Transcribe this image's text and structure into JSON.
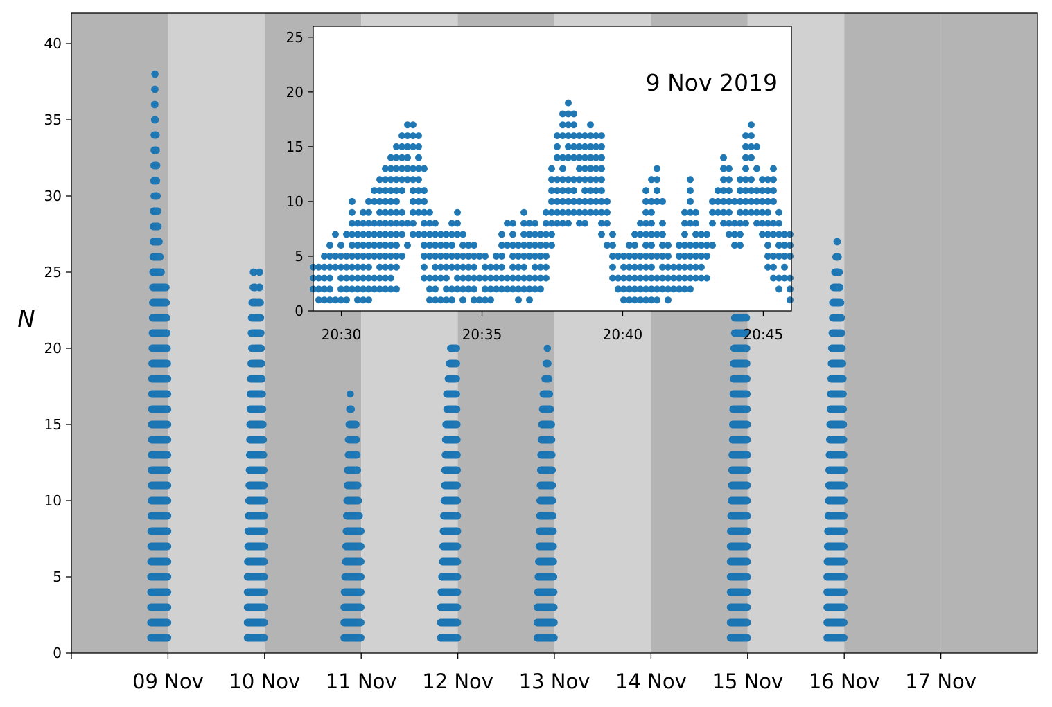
{
  "colors": {
    "point": "#1f77b4",
    "band_dark": "#b4b4b4",
    "band_light": "#d1d1d1",
    "inset_bg": "#ffffff",
    "axis": "#000000"
  },
  "chart_data": [
    {
      "id": "main",
      "type": "scatter",
      "title": "",
      "xlabel": "",
      "ylabel": "N",
      "x_scale": "date",
      "xlim": [
        "2019-11-08T00:00",
        "2019-11-18T00:00"
      ],
      "ylim": [
        0,
        42
      ],
      "x_ticks": [
        "2019-11-09",
        "2019-11-10",
        "2019-11-11",
        "2019-11-12",
        "2019-11-13",
        "2019-11-14",
        "2019-11-15",
        "2019-11-16",
        "2019-11-17"
      ],
      "x_tick_labels": [
        "09 Nov",
        "10 Nov",
        "11 Nov",
        "12 Nov",
        "13 Nov",
        "14 Nov",
        "15 Nov",
        "16 Nov",
        "17 Nov"
      ],
      "y_ticks": [
        0,
        5,
        10,
        15,
        20,
        25,
        30,
        35,
        40
      ],
      "grid": false,
      "legend": "none",
      "background_bands": [
        {
          "start": "2019-11-08",
          "end": "2019-11-09",
          "shade": "dark"
        },
        {
          "start": "2019-11-09",
          "end": "2019-11-10",
          "shade": "light"
        },
        {
          "start": "2019-11-10",
          "end": "2019-11-11",
          "shade": "dark"
        },
        {
          "start": "2019-11-11",
          "end": "2019-11-12",
          "shade": "light"
        },
        {
          "start": "2019-11-12",
          "end": "2019-11-13",
          "shade": "dark"
        },
        {
          "start": "2019-11-13",
          "end": "2019-11-14",
          "shade": "light"
        },
        {
          "start": "2019-11-14",
          "end": "2019-11-15",
          "shade": "dark"
        },
        {
          "start": "2019-11-15",
          "end": "2019-11-16",
          "shade": "light"
        },
        {
          "start": "2019-11-16",
          "end": "2019-11-17",
          "shade": "dark"
        },
        {
          "start": "2019-11-17",
          "end": "2019-11-18",
          "shade": "dark"
        }
      ],
      "clusters": [
        {
          "date": "2019-11-09",
          "time_range": [
            "19:45",
            "23:55"
          ],
          "max_N": 39,
          "max_by_time": [
            [
              "19:45",
              5
            ],
            [
              "20:00",
              18
            ],
            [
              "20:15",
              24
            ],
            [
              "20:30",
              31
            ],
            [
              "20:45",
              39
            ],
            [
              "21:00",
              35
            ],
            [
              "21:15",
              31
            ],
            [
              "21:30",
              28
            ],
            [
              "22:00",
              26
            ],
            [
              "22:30",
              24
            ],
            [
              "23:00",
              24
            ],
            [
              "23:30",
              24
            ],
            [
              "23:55",
              18
            ]
          ]
        },
        {
          "date": "2019-11-10",
          "time_range": [
            "19:45",
            "23:55"
          ],
          "max_N": 25,
          "max_by_time": [
            [
              "19:45",
              5
            ],
            [
              "20:15",
              12
            ],
            [
              "20:45",
              22
            ],
            [
              "21:15",
              25
            ],
            [
              "21:45",
              24
            ],
            [
              "22:15",
              22
            ],
            [
              "22:45",
              25
            ],
            [
              "23:15",
              19
            ],
            [
              "23:40",
              14
            ],
            [
              "23:55",
              10
            ]
          ]
        },
        {
          "date": "2019-11-11",
          "time_range": [
            "19:45",
            "23:55"
          ],
          "max_N": 17,
          "max_by_time": [
            [
              "19:45",
              3
            ],
            [
              "20:15",
              7
            ],
            [
              "20:45",
              13
            ],
            [
              "21:15",
              17
            ],
            [
              "21:45",
              15
            ],
            [
              "22:15",
              15
            ],
            [
              "22:45",
              15
            ],
            [
              "23:15",
              10
            ],
            [
              "23:40",
              8
            ],
            [
              "23:55",
              8
            ]
          ]
        },
        {
          "date": "2019-11-12",
          "time_range": [
            "19:45",
            "23:55"
          ],
          "max_N": 20,
          "max_by_time": [
            [
              "19:45",
              3
            ],
            [
              "20:15",
              6
            ],
            [
              "20:45",
              11
            ],
            [
              "21:15",
              17
            ],
            [
              "21:45",
              18
            ],
            [
              "22:15",
              20
            ],
            [
              "22:45",
              20
            ],
            [
              "23:15",
              20
            ],
            [
              "23:40",
              20
            ],
            [
              "23:55",
              8
            ]
          ]
        },
        {
          "date": "2019-11-13",
          "time_range": [
            "19:45",
            "23:55"
          ],
          "max_N": 20,
          "max_by_time": [
            [
              "19:45",
              3
            ],
            [
              "20:15",
              7
            ],
            [
              "20:45",
              14
            ],
            [
              "21:15",
              17
            ],
            [
              "21:45",
              18
            ],
            [
              "22:15",
              20
            ],
            [
              "22:45",
              17
            ],
            [
              "23:15",
              15
            ],
            [
              "23:40",
              8
            ],
            [
              "23:55",
              2
            ]
          ]
        },
        {
          "date": "2019-11-15",
          "time_range": [
            "19:45",
            "23:55"
          ],
          "max_N": 27,
          "max_by_time": [
            [
              "19:45",
              7
            ],
            [
              "20:15",
              14
            ],
            [
              "20:45",
              22
            ],
            [
              "21:15",
              25
            ],
            [
              "21:45",
              25
            ],
            [
              "22:15",
              26
            ],
            [
              "22:45",
              27
            ],
            [
              "23:15",
              25
            ],
            [
              "23:40",
              23
            ],
            [
              "23:55",
              14
            ]
          ]
        },
        {
          "date": "2019-11-16",
          "time_range": [
            "19:45",
            "23:55"
          ],
          "max_N": 27,
          "max_by_time": [
            [
              "19:45",
              5
            ],
            [
              "20:15",
              12
            ],
            [
              "20:45",
              18
            ],
            [
              "21:15",
              24
            ],
            [
              "21:45",
              25
            ],
            [
              "22:15",
              27
            ],
            [
              "22:45",
              25
            ],
            [
              "23:15",
              22
            ],
            [
              "23:40",
              18
            ],
            [
              "23:55",
              12
            ]
          ]
        }
      ]
    },
    {
      "id": "inset",
      "type": "scatter",
      "title": "",
      "annotation": "9 Nov 2019",
      "xlabel": "",
      "ylabel": "",
      "x_scale": "time",
      "xlim": [
        "20:29",
        "20:46"
      ],
      "ylim": [
        0,
        26
      ],
      "x_ticks": [
        "20:30",
        "20:35",
        "20:40",
        "20:45"
      ],
      "x_tick_labels": [
        "20:30",
        "20:35",
        "20:40",
        "20:45"
      ],
      "y_ticks": [
        0,
        5,
        10,
        15,
        20,
        25
      ],
      "grid": false,
      "legend": "none",
      "max_profile": [
        [
          "20:29.0",
          4
        ],
        [
          "20:29.4",
          5
        ],
        [
          "20:29.8",
          7
        ],
        [
          "20:30.1",
          5
        ],
        [
          "20:30.3",
          12
        ],
        [
          "20:30.6",
          8
        ],
        [
          "20:31.0",
          10
        ],
        [
          "20:31.2",
          12
        ],
        [
          "20:31.6",
          13
        ],
        [
          "20:32.0",
          15
        ],
        [
          "20:32.2",
          17
        ],
        [
          "20:32.5",
          18
        ],
        [
          "20:32.8",
          16
        ],
        [
          "20:33.1",
          11
        ],
        [
          "20:33.4",
          7
        ],
        [
          "20:33.8",
          8
        ],
        [
          "20:34.1",
          9
        ],
        [
          "20:34.5",
          6
        ],
        [
          "20:35.0",
          6
        ],
        [
          "20:35.5",
          5
        ],
        [
          "20:35.9",
          8
        ],
        [
          "20:36.3",
          7
        ],
        [
          "20:36.6",
          10
        ],
        [
          "20:36.9",
          8
        ],
        [
          "20:37.3",
          9
        ],
        [
          "20:37.6",
          15
        ],
        [
          "20:37.8",
          17
        ],
        [
          "20:38.1",
          20
        ],
        [
          "20:38.4",
          17
        ],
        [
          "20:38.7",
          16
        ],
        [
          "20:39.0",
          18
        ],
        [
          "20:39.3",
          15
        ],
        [
          "20:39.6",
          7
        ],
        [
          "20:39.9",
          6
        ],
        [
          "20:40.3",
          6
        ],
        [
          "20:40.6",
          9
        ],
        [
          "20:41.0",
          12
        ],
        [
          "20:41.2",
          14
        ],
        [
          "20:41.5",
          9
        ],
        [
          "20:41.8",
          5
        ],
        [
          "20:42.1",
          8
        ],
        [
          "20:42.4",
          12
        ],
        [
          "20:42.7",
          8
        ],
        [
          "20:43.0",
          7
        ],
        [
          "20:43.3",
          11
        ],
        [
          "20:43.6",
          15
        ],
        [
          "20:44.0",
          10
        ],
        [
          "20:44.3",
          15
        ],
        [
          "20:44.5",
          17
        ],
        [
          "20:44.8",
          15
        ],
        [
          "20:45.1",
          12
        ],
        [
          "20:45.4",
          14
        ],
        [
          "20:45.7",
          7
        ],
        [
          "20:46.0",
          7
        ]
      ],
      "min_profile": [
        [
          "20:29.0",
          1
        ],
        [
          "20:31.0",
          1
        ],
        [
          "20:32.0",
          2
        ],
        [
          "20:32.6",
          8
        ],
        [
          "20:33.1",
          1
        ],
        [
          "20:34.0",
          1
        ],
        [
          "20:36.0",
          1
        ],
        [
          "20:36.6",
          1
        ],
        [
          "20:37.3",
          3
        ],
        [
          "20:37.6",
          8
        ],
        [
          "20:38.6",
          8
        ],
        [
          "20:39.0",
          9
        ],
        [
          "20:39.5",
          5
        ],
        [
          "20:39.8",
          1
        ],
        [
          "20:41.0",
          1
        ],
        [
          "20:41.6",
          1
        ],
        [
          "20:42.3",
          2
        ],
        [
          "20:43.0",
          3
        ],
        [
          "20:43.4",
          9
        ],
        [
          "20:44.0",
          5
        ],
        [
          "20:44.6",
          9
        ],
        [
          "20:45.2",
          4
        ],
        [
          "20:45.6",
          2
        ],
        [
          "20:46.0",
          1
        ]
      ]
    }
  ]
}
